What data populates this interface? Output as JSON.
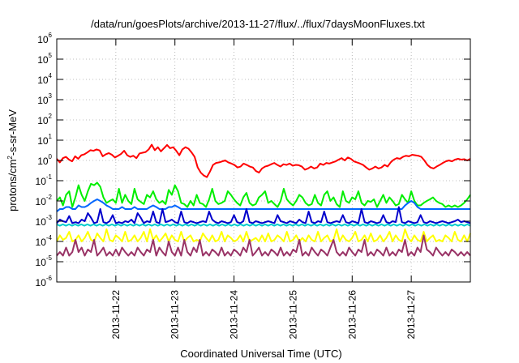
{
  "chart_data": {
    "type": "line",
    "title": "/data/run/goesPlots/archive/2013-11-27/flux/../flux/7daysMoonFluxes.txt",
    "xlabel": "Coordinated Universal Time (UTC)",
    "ylabel": "protons/cm²-s-sr-MeV",
    "ylabel_base": "protons/cm",
    "ylabel_sup": "2",
    "ylabel_rest": "-s-sr-MeV",
    "y_scale": "log",
    "ylim": [
      1e-06,
      1000000.0
    ],
    "y_ticks": [
      {
        "base": "10",
        "exp": "-6"
      },
      {
        "base": "10",
        "exp": "-5"
      },
      {
        "base": "10",
        "exp": "-4"
      },
      {
        "base": "10",
        "exp": "-3"
      },
      {
        "base": "10",
        "exp": "-2"
      },
      {
        "base": "10",
        "exp": "-1"
      },
      {
        "base": "10",
        "exp": "0"
      },
      {
        "base": "10",
        "exp": "1"
      },
      {
        "base": "10",
        "exp": "2"
      },
      {
        "base": "10",
        "exp": "3"
      },
      {
        "base": "10",
        "exp": "4"
      },
      {
        "base": "10",
        "exp": "5"
      },
      {
        "base": "10",
        "exp": "6"
      }
    ],
    "xlim": [
      "2013-11-21 00:00",
      "2013-11-28 00:00"
    ],
    "x_ticks": [
      "2013-11-22",
      "2013-11-23",
      "2013-11-24",
      "2013-11-25",
      "2013-11-26",
      "2013-11-27"
    ],
    "grid": true,
    "legend": "none",
    "series": [
      {
        "color": "#ff0000",
        "values": [
          1.2,
          0.8,
          1.3,
          1.5,
          1.1,
          0.9,
          1.6,
          1.2,
          1.8,
          2.0,
          2.5,
          3.2,
          3.0,
          3.5,
          3.1,
          1.6,
          2.0,
          2.3,
          1.9,
          1.4,
          1.7,
          2.1,
          3.0,
          1.8,
          1.5,
          1.7,
          1.3,
          2.2,
          2.4,
          2.6,
          3.5,
          6.0,
          3.2,
          4.5,
          2.8,
          4.0,
          5.8,
          4.0,
          4.5,
          3.0,
          1.8,
          3.5,
          4.5,
          3.8,
          2.5,
          1.5,
          0.45,
          0.25,
          0.18,
          0.15,
          0.28,
          0.6,
          0.75,
          0.8,
          0.9,
          1.0,
          0.8,
          0.7,
          0.6,
          0.45,
          0.5,
          0.7,
          0.6,
          0.5,
          0.45,
          0.3,
          0.25,
          0.4,
          0.5,
          0.55,
          0.65,
          0.75,
          0.6,
          0.5,
          0.65,
          0.6,
          0.7,
          0.55,
          0.6,
          0.58,
          0.5,
          0.35,
          0.4,
          0.5,
          0.4,
          0.45,
          0.7,
          0.6,
          0.75,
          0.7,
          0.8,
          0.9,
          1.1,
          1.3,
          1.0,
          1.4,
          1.2,
          0.9,
          0.8,
          0.7,
          0.6,
          0.45,
          0.35,
          0.4,
          0.5,
          0.4,
          0.45,
          0.6,
          0.5,
          0.8,
          1.1,
          1.3,
          1.2,
          1.5,
          1.7,
          1.6,
          1.9,
          1.8,
          1.7,
          1.5,
          1.0,
          0.6,
          0.45,
          0.4,
          0.5,
          0.6,
          0.75,
          0.9,
          1.0,
          0.9,
          1.1,
          1.2,
          1.1,
          1.15,
          1.0,
          1.2
        ]
      },
      {
        "color": "#00ee00",
        "values": [
          0.01,
          0.015,
          0.006,
          0.02,
          0.03,
          0.005,
          0.015,
          0.06,
          0.02,
          0.01,
          0.03,
          0.07,
          0.06,
          0.08,
          0.05,
          0.015,
          0.008,
          0.01,
          0.012,
          0.008,
          0.04,
          0.008,
          0.02,
          0.01,
          0.007,
          0.04,
          0.012,
          0.009,
          0.007,
          0.02,
          0.015,
          0.03,
          0.012,
          0.008,
          0.01,
          0.007,
          0.035,
          0.02,
          0.06,
          0.03,
          0.008,
          0.007,
          0.005,
          0.01,
          0.006,
          0.02,
          0.008,
          0.007,
          0.005,
          0.012,
          0.04,
          0.01,
          0.007,
          0.008,
          0.01,
          0.03,
          0.02,
          0.012,
          0.008,
          0.006,
          0.015,
          0.025,
          0.008,
          0.006,
          0.007,
          0.015,
          0.02,
          0.03,
          0.008,
          0.01,
          0.007,
          0.005,
          0.01,
          0.04,
          0.012,
          0.008,
          0.006,
          0.01,
          0.02,
          0.015,
          0.008,
          0.006,
          0.007,
          0.02,
          0.008,
          0.006,
          0.02,
          0.03,
          0.01,
          0.015,
          0.007,
          0.005,
          0.03,
          0.01,
          0.008,
          0.015,
          0.012,
          0.03,
          0.008,
          0.006,
          0.01,
          0.009,
          0.012,
          0.005,
          0.01,
          0.02,
          0.008,
          0.015,
          0.01,
          0.006,
          0.007,
          0.02,
          0.012,
          0.008,
          0.03,
          0.01,
          0.006,
          0.006,
          0.008,
          0.01,
          0.012,
          0.015,
          0.01,
          0.008,
          0.007,
          0.005,
          0.006,
          0.005,
          0.006,
          0.005,
          0.006,
          0.008,
          0.012,
          0.02
        ]
      },
      {
        "color": "#0066ff",
        "values": [
          0.003,
          0.004,
          0.004,
          0.005,
          0.005,
          0.004,
          0.004,
          0.006,
          0.005,
          0.005,
          0.006,
          0.008,
          0.01,
          0.012,
          0.01,
          0.008,
          0.006,
          0.005,
          0.004,
          0.004,
          0.004,
          0.005,
          0.004,
          0.004,
          0.004,
          0.005,
          0.004,
          0.004,
          0.004,
          0.004,
          0.005,
          0.006,
          0.005,
          0.004,
          0.004,
          0.004,
          0.005,
          0.005,
          0.006,
          0.005,
          0.004,
          0.004,
          0.004,
          0.004,
          0.004,
          0.004,
          0.004,
          0.004,
          0.004,
          0.004,
          0.004,
          0.004,
          0.004,
          0.004,
          0.004,
          0.004,
          0.004,
          0.004,
          0.004,
          0.004,
          0.004,
          0.004,
          0.004,
          0.004,
          0.004,
          0.004,
          0.004,
          0.004,
          0.004,
          0.004,
          0.004,
          0.004,
          0.004,
          0.004,
          0.004,
          0.004,
          0.004,
          0.004,
          0.004,
          0.004,
          0.004,
          0.004,
          0.004,
          0.004,
          0.004,
          0.004,
          0.004,
          0.004,
          0.004,
          0.004,
          0.004,
          0.004,
          0.004,
          0.004,
          0.004,
          0.004,
          0.004,
          0.004,
          0.004,
          0.004,
          0.004,
          0.004,
          0.004,
          0.004,
          0.004,
          0.004,
          0.004,
          0.004,
          0.004,
          0.004,
          0.004,
          0.004,
          0.006,
          0.008,
          0.01,
          0.008,
          0.005,
          0.004,
          0.004,
          0.004,
          0.004,
          0.004,
          0.004,
          0.004,
          0.004,
          0.004,
          0.004,
          0.004,
          0.004,
          0.004,
          0.004,
          0.004,
          0.004,
          0.004
        ]
      },
      {
        "color": "#0000cc",
        "values": [
          0.0008,
          0.0012,
          0.001,
          0.0009,
          0.0018,
          0.0008,
          0.0009,
          0.0008,
          0.0012,
          0.001,
          0.0025,
          0.0015,
          0.0008,
          0.0009,
          0.004,
          0.0009,
          0.0008,
          0.001,
          0.002,
          0.0008,
          0.0009,
          0.0008,
          0.001,
          0.0009,
          0.0012,
          0.0008,
          0.0025,
          0.0015,
          0.0008,
          0.001,
          0.0009,
          0.003,
          0.0009,
          0.0008,
          0.004,
          0.0009,
          0.001,
          0.0012,
          0.0009,
          0.0008,
          0.003,
          0.0009,
          0.0008,
          0.001,
          0.0009,
          0.0008,
          0.0009,
          0.001,
          0.0009,
          0.003,
          0.0012,
          0.0009,
          0.0008,
          0.001,
          0.0009,
          0.0008,
          0.0009,
          0.002,
          0.0009,
          0.0008,
          0.001,
          0.004,
          0.0009,
          0.0008,
          0.001,
          0.0009,
          0.0008,
          0.0009,
          0.001,
          0.0009,
          0.0008,
          0.002,
          0.001,
          0.0009,
          0.0008,
          0.001,
          0.0009,
          0.0008,
          0.0012,
          0.0009,
          0.0008,
          0.003,
          0.0009,
          0.0008,
          0.001,
          0.0009,
          0.003,
          0.0009,
          0.0008,
          0.0009,
          0.001,
          0.0009,
          0.002,
          0.0009,
          0.0008,
          0.001,
          0.0009,
          0.0008,
          0.004,
          0.0009,
          0.0008,
          0.001,
          0.0009,
          0.0008,
          0.0009,
          0.002,
          0.0009,
          0.0008,
          0.001,
          0.0009,
          0.005,
          0.0009,
          0.0008,
          0.001,
          0.0009,
          0.0008,
          0.0009,
          0.002,
          0.0009,
          0.0008,
          0.001,
          0.0009,
          0.0008,
          0.0009,
          0.001,
          0.0009,
          0.0008,
          0.0009,
          0.001,
          0.0012,
          0.0009,
          0.001,
          0.0009,
          0.0008
        ]
      },
      {
        "color": "#00cccc",
        "values": [
          0.0007,
          0.0006,
          0.0007,
          0.0006,
          0.0007,
          0.0006,
          0.0007,
          0.0006,
          0.0007,
          0.0006,
          0.0007,
          0.0006,
          0.0007,
          0.0006,
          0.0007,
          0.0006,
          0.0007,
          0.0006,
          0.0007,
          0.0006,
          0.0007,
          0.0006,
          0.0007,
          0.0006,
          0.0007,
          0.0006,
          0.0007,
          0.0006,
          0.0007,
          0.0006,
          0.0007,
          0.0006,
          0.0007,
          0.0006,
          0.0007,
          0.0006,
          0.0007,
          0.0006,
          0.0007,
          0.0006,
          0.0007,
          0.0006,
          0.0007,
          0.0006,
          0.0007,
          0.0006,
          0.0007,
          0.0006,
          0.0007,
          0.0006,
          0.0007,
          0.0006,
          0.0007,
          0.0006,
          0.0007,
          0.0006,
          0.0007,
          0.0006,
          0.0007,
          0.0006,
          0.0007,
          0.0006,
          0.0007,
          0.0006,
          0.0007,
          0.0006,
          0.0007,
          0.0006,
          0.0007,
          0.0006,
          0.0007,
          0.0006,
          0.0007,
          0.0006,
          0.0007,
          0.0006,
          0.0007,
          0.0006,
          0.0007,
          0.0006,
          0.0007,
          0.0006,
          0.0007,
          0.0006,
          0.0007,
          0.0006,
          0.0007,
          0.0006,
          0.0007,
          0.0006,
          0.0007,
          0.0006,
          0.0007,
          0.0006,
          0.0007,
          0.0006,
          0.0007,
          0.0006,
          0.0007,
          0.0006,
          0.0007,
          0.0006,
          0.0007,
          0.0006,
          0.0007,
          0.0006,
          0.0007,
          0.0006,
          0.0007,
          0.0006,
          0.0007,
          0.0006,
          0.0007,
          0.0006,
          0.0007,
          0.0006,
          0.0007,
          0.0006,
          0.0007,
          0.0006,
          0.0007,
          0.0006,
          0.0007,
          0.0006,
          0.0007,
          0.0006,
          0.0007,
          0.0006,
          0.0007,
          0.0006,
          0.0007,
          0.0006,
          0.0007,
          0.0006,
          0.0007,
          0.0006
        ]
      },
      {
        "color": "#ffff00",
        "values": [
          0.0001,
          0.0002,
          0.00012,
          0.00015,
          0.0003,
          0.0001,
          0.00012,
          0.0002,
          0.0001,
          0.00015,
          0.0003,
          0.00012,
          0.0001,
          0.00025,
          0.00015,
          0.0001,
          0.0004,
          0.00012,
          0.0001,
          0.0002,
          0.00015,
          0.0001,
          0.0003,
          0.0001,
          0.00012,
          0.0002,
          0.0001,
          0.00015,
          0.0003,
          0.0001,
          0.0004,
          0.00012,
          0.0002,
          0.0001,
          0.00015,
          0.00025,
          0.0001,
          0.0002,
          0.00012,
          0.0001,
          0.0003,
          0.0001,
          0.00015,
          0.0002,
          0.0001,
          0.00012,
          0.0001,
          0.00025,
          0.00015,
          0.0001,
          0.0002,
          0.0001,
          0.00012,
          0.0003,
          0.0001,
          0.0002,
          0.00015,
          0.0001,
          0.00012,
          0.0002,
          0.0001,
          0.0003,
          0.0001,
          0.00012,
          0.00015,
          0.0001,
          0.0002,
          0.0001,
          0.00025,
          0.0001,
          0.00012,
          0.0002,
          0.00015,
          0.0001,
          0.0003,
          0.0001,
          0.00012,
          0.0002,
          0.0001,
          0.00015,
          0.0001,
          0.0002,
          0.00012,
          0.0001,
          0.0003,
          0.0001,
          0.00015,
          0.0002,
          0.0001,
          0.00012,
          0.0004,
          0.0001,
          0.0002,
          0.00012,
          0.0001,
          0.00015,
          0.0003,
          0.0001,
          0.00012,
          0.0002,
          0.0001,
          0.00025,
          0.0001,
          0.00012,
          0.0002,
          0.0001,
          0.00015,
          0.0003,
          0.0001,
          0.0002,
          0.00012,
          0.0001,
          0.0004,
          0.00015,
          0.0001,
          0.0002,
          0.00012,
          0.0001,
          0.0003,
          0.0001,
          0.00015,
          0.0002,
          0.0001,
          0.00012,
          0.0001,
          0.0002,
          0.00015,
          0.0001,
          0.0003,
          0.00012,
          0.0001,
          0.0002,
          0.0001,
          0.00025
        ]
      },
      {
        "color": "#993366",
        "values": [
          2e-05,
          3e-05,
          2e-05,
          5e-05,
          2e-05,
          3e-05,
          0.00012,
          3e-05,
          5e-05,
          2e-05,
          4e-05,
          3e-05,
          0.00012,
          2e-05,
          3e-05,
          5e-05,
          2e-05,
          3e-05,
          2e-05,
          4e-05,
          2e-05,
          5e-05,
          3e-05,
          2e-05,
          3e-05,
          2e-05,
          5e-05,
          3e-05,
          2e-05,
          4e-05,
          3e-05,
          0.00012,
          2e-05,
          5e-05,
          3e-05,
          2e-05,
          0.0001,
          3e-05,
          2e-05,
          5e-05,
          2e-05,
          0.00012,
          3e-05,
          2e-05,
          5e-05,
          3e-05,
          0.00012,
          2e-05,
          3e-05,
          2e-05,
          4e-05,
          3e-05,
          2e-05,
          5e-05,
          2e-05,
          3e-05,
          2e-05,
          4e-05,
          3e-05,
          2e-05,
          5e-05,
          3e-05,
          0.00012,
          2e-05,
          3e-05,
          5e-05,
          2e-05,
          3e-05,
          2e-05,
          4e-05,
          3e-05,
          2e-05,
          5e-05,
          2e-05,
          3e-05,
          2e-05,
          4e-05,
          3e-05,
          0.00012,
          2e-05,
          3e-05,
          2e-05,
          5e-05,
          3e-05,
          2e-05,
          4e-05,
          3e-05,
          2e-05,
          5e-05,
          0.00012,
          3e-05,
          2e-05,
          3e-05,
          2e-05,
          5e-05,
          3e-05,
          2e-05,
          4e-05,
          3e-05,
          0.00012,
          2e-05,
          3e-05,
          2e-05,
          4e-05,
          3e-05,
          2e-05,
          5e-05,
          2e-05,
          3e-05,
          2e-05,
          4e-05,
          3e-05,
          0.00012,
          2e-05,
          3e-05,
          2e-05,
          5e-05,
          3e-05,
          0.0002,
          4e-05,
          3e-05,
          2e-05,
          5e-05,
          3e-05,
          2e-05,
          3e-05,
          2e-05,
          4e-05,
          3e-05,
          2e-05,
          3e-05,
          2e-05,
          3e-05,
          2e-05
        ]
      }
    ]
  }
}
